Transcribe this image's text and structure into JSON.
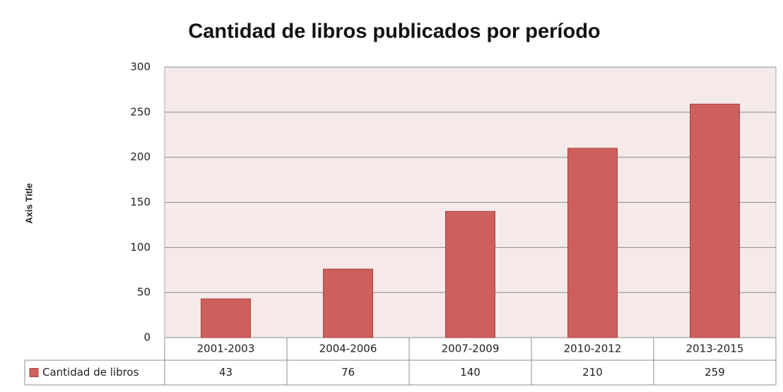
{
  "chart_data": {
    "type": "bar",
    "title": "Cantidad de libros publicados por período",
    "y_axis_label": "Axis Title",
    "categories": [
      "2001-2003",
      "2004-2006",
      "2007-2009",
      "2010-2012",
      "2013-2015"
    ],
    "series": [
      {
        "name": "Cantidad de libros",
        "color": "#cd5f5c",
        "values": [
          43,
          76,
          140,
          210,
          259
        ]
      }
    ],
    "ylim": [
      0,
      300
    ],
    "yticks": [
      0,
      50,
      100,
      150,
      200,
      250,
      300
    ],
    "grid": true,
    "data_table": true
  }
}
